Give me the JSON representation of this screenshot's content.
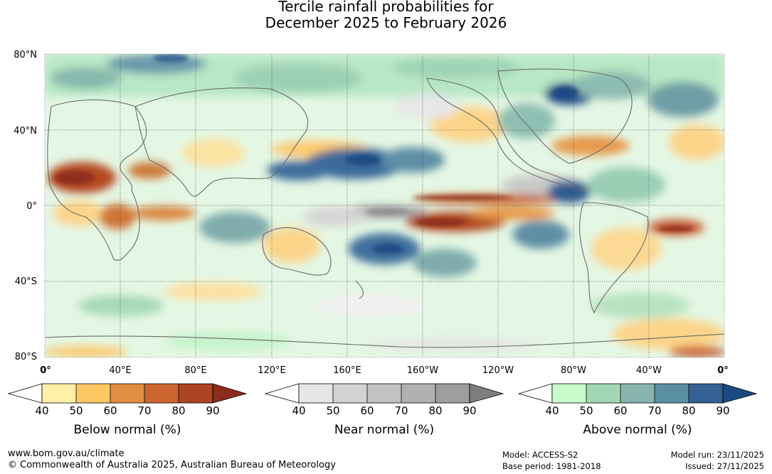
{
  "title": {
    "line1": "Tercile rainfall probabilities for",
    "line2": "December 2025 to February 2026"
  },
  "map": {
    "lat_labels": [
      "80°N",
      "40°N",
      "0°",
      "40°S",
      "80°S"
    ],
    "lon_labels": [
      "0°",
      "40°E",
      "80°E",
      "120°E",
      "160°E",
      "160°W",
      "120°W",
      "80°W",
      "40°W",
      "0°"
    ]
  },
  "legends": [
    {
      "name": "below",
      "label": "Below normal (%)",
      "ticks": [
        "40",
        "50",
        "60",
        "70",
        "80",
        "90"
      ],
      "colors": [
        "#fff0a8",
        "#fdc765",
        "#e08e41",
        "#cc6530",
        "#ad4424",
        "#8c2d1c"
      ]
    },
    {
      "name": "near",
      "label": "Near normal (%)",
      "ticks": [
        "40",
        "50",
        "60",
        "70",
        "80",
        "90"
      ],
      "colors": [
        "#e6e6e6",
        "#d2d2d2",
        "#c2c2c2",
        "#b0b0b0",
        "#9e9e9e",
        "#7e7e7e"
      ]
    },
    {
      "name": "above",
      "label": "Above normal (%)",
      "ticks": [
        "40",
        "50",
        "60",
        "70",
        "80",
        "90"
      ],
      "colors": [
        "#c8fbcb",
        "#a3d6b5",
        "#87b5ad",
        "#5b8fa3",
        "#346094",
        "#1a4a82"
      ]
    }
  ],
  "footer": {
    "url": "www.bom.gov.au/climate",
    "copyright": "© Commonwealth of Australia 2025, Australian Bureau of Meteorology",
    "model": "Model: ACCESS-S2",
    "base_period": "Base period: 1981-2018",
    "model_run": "Model run: 23/11/2025",
    "issued": "Issued: 27/11/2025"
  }
}
